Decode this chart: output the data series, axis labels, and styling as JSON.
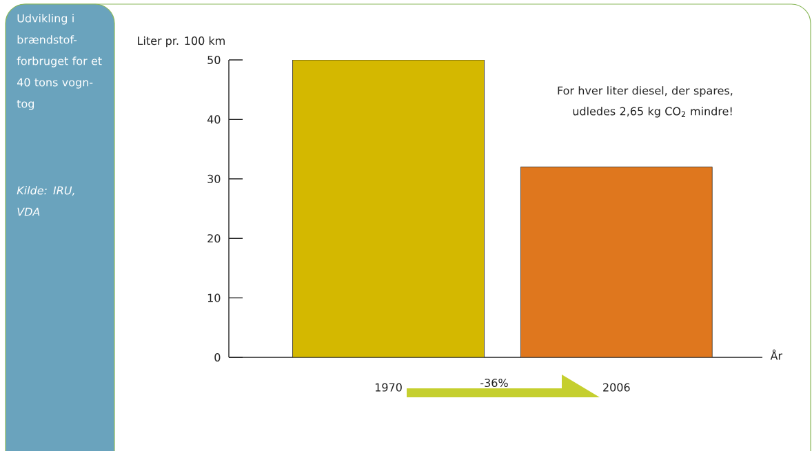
{
  "chart_data": {
    "type": "bar",
    "title": "Udvikling i brændstof-forbruget for et 40 tons vogn-tog",
    "ylabel": "Liter pr. 100 km",
    "xlabel": "År",
    "categories": [
      "1970",
      "2006"
    ],
    "values": [
      50,
      32
    ],
    "colors": [
      "#d4b800",
      "#df771e"
    ],
    "ylim": [
      0,
      50
    ],
    "yticks": [
      0,
      10,
      20,
      30,
      40,
      50
    ],
    "annotations": [
      "For hver liter diesel, der spares, udledes 2,65 kg CO$_{2}$ mindre!",
      "-36%",
      "Kilde: IRU, VDA"
    ]
  }
}
